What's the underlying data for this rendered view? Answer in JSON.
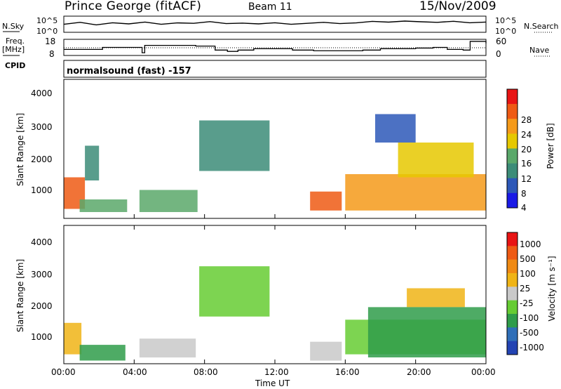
{
  "header": {
    "station": "Prince George (fitACF)",
    "beam": "Beam 11",
    "date": "15/Nov/2009"
  },
  "left_labels": {
    "nsky": "N.Sky",
    "freq": "Freq.",
    "freq_unit": "[MHz]",
    "cpid": "CPID"
  },
  "right_labels": {
    "nsearch": "N.Search",
    "nave": "Nave"
  },
  "cpid_text": "normalsound (fast) -157",
  "noise_axis": {
    "left_ticks": [
      "10^5",
      "10^0"
    ],
    "right_ticks": [
      "10^5",
      "10^0"
    ]
  },
  "freq_axis": {
    "left_ticks": [
      "18",
      "8"
    ],
    "right_ticks": [
      "60",
      "0"
    ]
  },
  "power_panel": {
    "ylabel": "Slant Range [km]",
    "yticks": [
      "4000",
      "3000",
      "2000",
      "1000"
    ],
    "colorbar_label": "Power [dB]",
    "colorbar_ticks": [
      "28",
      "24",
      "20",
      "16",
      "12",
      "8",
      "4"
    ]
  },
  "velocity_panel": {
    "ylabel": "Slant Range [km]",
    "yticks": [
      "4000",
      "3000",
      "2000",
      "1000"
    ],
    "colorbar_label": "Velocity [m s⁻¹]",
    "colorbar_ticks": [
      "1000",
      "500",
      "100",
      "25",
      "-25",
      "-100",
      "-500",
      "-1000"
    ]
  },
  "xaxis": {
    "ticks": [
      "00:00",
      "04:00",
      "08:00",
      "12:00",
      "16:00",
      "20:00",
      "00:00"
    ],
    "label": "Time UT"
  },
  "colors": {
    "power_scale": [
      "#1a1ae6",
      "#2d58b8",
      "#3c8c78",
      "#5aa86a",
      "#e6c800",
      "#f59a1a",
      "#ee5a14",
      "#e81414"
    ],
    "velocity_scale": [
      "#2343b3",
      "#2f6fb8",
      "#2f9c4a",
      "#66cc33",
      "#c9c9c9",
      "#f0b416",
      "#f08a14",
      "#ee5a14",
      "#e81414"
    ]
  },
  "chart_data": [
    {
      "type": "line",
      "series": [
        {
          "name": "N.Sky",
          "values": [
            300,
            1200,
            200,
            900,
            400,
            1500,
            300,
            800,
            600,
            2000,
            500,
            700,
            400,
            900,
            300,
            600,
            1200,
            500,
            800,
            2500,
            1400,
            3000,
            1800,
            1200,
            2600,
            900,
            1500
          ]
        }
      ],
      "x": [
        0,
        1,
        2,
        3,
        4,
        5,
        6,
        7,
        8,
        9,
        10,
        11,
        12,
        13,
        14,
        15,
        16,
        17,
        18,
        19,
        20,
        21,
        22,
        23,
        24,
        25,
        26
      ],
      "ylim_log10": [
        0,
        5
      ]
    },
    {
      "type": "line",
      "series": [
        {
          "name": "Freq.",
          "values": [
            11.5,
            11.5,
            13,
            13,
            9,
            14.5,
            14.5,
            14,
            11,
            10,
            11,
            12,
            12,
            11,
            10.5,
            10.5,
            11,
            12,
            12,
            12.5,
            13,
            11.5,
            11,
            17.5,
            16
          ]
        }
      ],
      "x": [
        0,
        1.3,
        2.2,
        3.0,
        4.45,
        4.6,
        6.0,
        7.5,
        8.6,
        9.3,
        9.9,
        10.8,
        12.0,
        13.0,
        14.2,
        15.0,
        17.0,
        18.0,
        19.0,
        20.0,
        21.0,
        21.8,
        22.7,
        23.1,
        24.0
      ],
      "ylim": [
        8,
        18
      ]
    },
    {
      "type": "heatmap",
      "title": "Power",
      "ylabel": "Slant Range [km]",
      "zlabel": "Power [dB]",
      "zlim": [
        0,
        30
      ],
      "ylim": [
        200,
        4600
      ],
      "xlim_hours": [
        0,
        24
      ],
      "regions": [
        {
          "t0": 0.0,
          "t1": 1.2,
          "r0": 500,
          "r1": 1500,
          "power": 26
        },
        {
          "t0": 0.9,
          "t1": 3.6,
          "r0": 400,
          "r1": 800,
          "power": 12
        },
        {
          "t0": 1.2,
          "t1": 2.0,
          "r0": 1400,
          "r1": 2500,
          "power": 8
        },
        {
          "t0": 4.3,
          "t1": 7.6,
          "r0": 400,
          "r1": 1100,
          "power": 12
        },
        {
          "t0": 7.7,
          "t1": 11.7,
          "r0": 1700,
          "r1": 3300,
          "power": 8
        },
        {
          "t0": 14.0,
          "t1": 15.8,
          "r0": 450,
          "r1": 1050,
          "power": 27
        },
        {
          "t0": 16.0,
          "t1": 24.0,
          "r0": 450,
          "r1": 1600,
          "power": 22
        },
        {
          "t0": 19.0,
          "t1": 23.3,
          "r0": 1500,
          "r1": 2600,
          "power": 16
        },
        {
          "t0": 17.7,
          "t1": 20.0,
          "r0": 2600,
          "r1": 3500,
          "power": 6
        }
      ]
    },
    {
      "type": "heatmap",
      "title": "Velocity",
      "ylabel": "Slant Range [km]",
      "zlabel": "Velocity [m s⁻¹]",
      "zlim": [
        -1000,
        1000
      ],
      "ylim": [
        200,
        4600
      ],
      "xlim_hours": [
        0,
        24
      ],
      "regions": [
        {
          "t0": 0.0,
          "t1": 1.0,
          "r0": 500,
          "r1": 1500,
          "velocity": -500
        },
        {
          "t0": 0.9,
          "t1": 3.5,
          "r0": 300,
          "r1": 800,
          "velocity": 25
        },
        {
          "t0": 4.3,
          "t1": 7.5,
          "r0": 400,
          "r1": 1000,
          "velocity": -100
        },
        {
          "t0": 7.7,
          "t1": 11.7,
          "r0": 1700,
          "r1": 3300,
          "velocity": 0
        },
        {
          "t0": 14.0,
          "t1": 15.8,
          "r0": 300,
          "r1": 900,
          "velocity": -100
        },
        {
          "t0": 16.0,
          "t1": 24.0,
          "r0": 500,
          "r1": 1600,
          "velocity": 0
        },
        {
          "t0": 19.5,
          "t1": 22.8,
          "r0": 2000,
          "r1": 2600,
          "velocity": -300
        },
        {
          "t0": 17.3,
          "t1": 24.0,
          "r0": 400,
          "r1": 2000,
          "velocity": 50
        }
      ]
    }
  ]
}
